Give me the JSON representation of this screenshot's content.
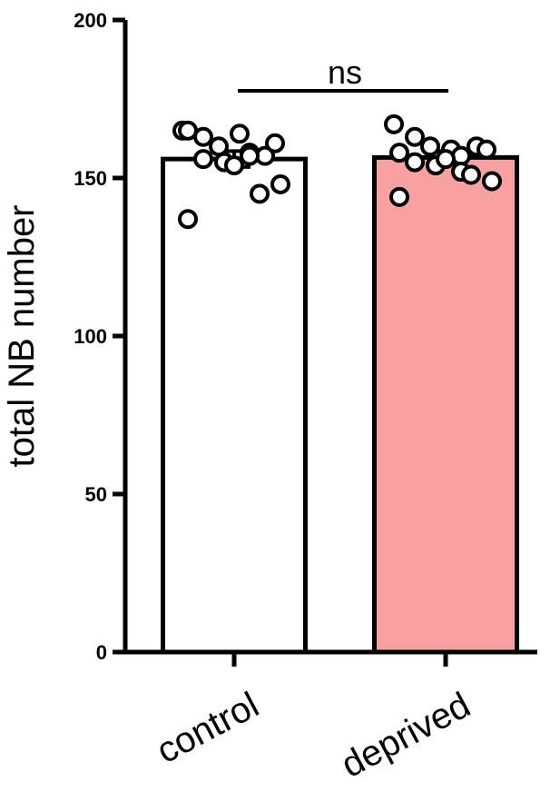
{
  "chart_data": {
    "type": "bar",
    "title": "",
    "xlabel": "",
    "ylabel": "total NB number",
    "ylim": [
      0,
      200
    ],
    "yticks": [
      0,
      50,
      100,
      150,
      200
    ],
    "categories": [
      "control",
      "deprived"
    ],
    "values": [
      156,
      156.5
    ],
    "error": [
      2.5,
      2
    ],
    "bar_colors": [
      "#ffffff",
      "#f9a1a1"
    ],
    "points": [
      [
        165,
        163,
        160,
        164,
        158,
        157,
        161,
        165,
        156,
        155,
        154,
        157,
        145,
        148,
        137
      ],
      [
        167,
        163,
        160,
        159,
        157,
        160,
        159,
        158,
        155,
        154,
        156,
        152,
        151,
        149,
        144
      ]
    ],
    "significance": {
      "label": "ns",
      "between": [
        "control",
        "deprived"
      ]
    },
    "grid": false,
    "legend": "none"
  }
}
